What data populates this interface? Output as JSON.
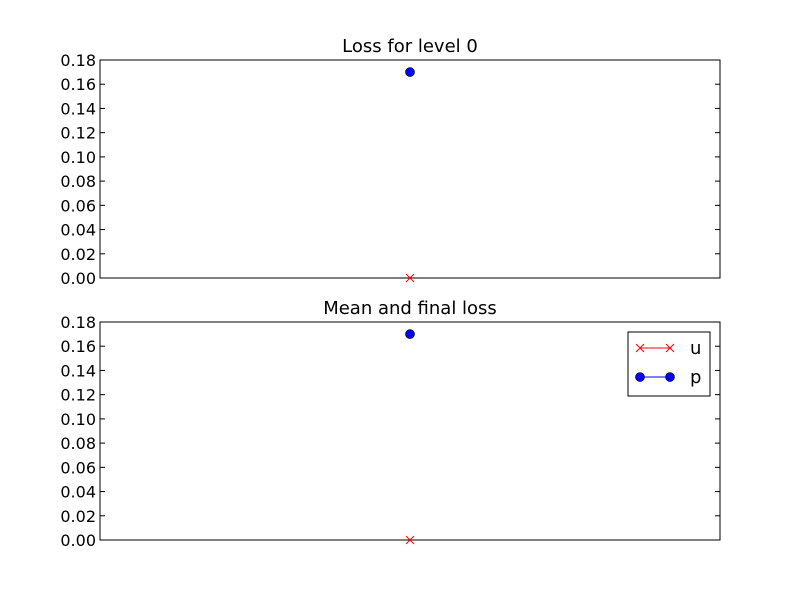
{
  "chart_data": [
    {
      "type": "line",
      "title": "Loss for level 0",
      "xlabel": "",
      "ylabel": "",
      "ylim": [
        0,
        0.18
      ],
      "yticks": [
        "0.00",
        "0.02",
        "0.04",
        "0.06",
        "0.08",
        "0.10",
        "0.12",
        "0.14",
        "0.16",
        "0.18"
      ],
      "x": [
        0
      ],
      "xlim": [
        -1,
        1
      ],
      "grid": false,
      "series": [
        {
          "key": "u",
          "marker": "x",
          "color": "#ff0000",
          "values": [
            0.0
          ]
        },
        {
          "key": "p",
          "marker": "o",
          "color": "#0000ff",
          "values": [
            0.17
          ]
        }
      ]
    },
    {
      "type": "line",
      "title": "Mean and final loss",
      "xlabel": "",
      "ylabel": "",
      "ylim": [
        0,
        0.18
      ],
      "yticks": [
        "0.00",
        "0.02",
        "0.04",
        "0.06",
        "0.08",
        "0.10",
        "0.12",
        "0.14",
        "0.16",
        "0.18"
      ],
      "x": [
        0
      ],
      "xlim": [
        -1,
        1
      ],
      "grid": false,
      "legend": {
        "placement": "top-right",
        "entries": [
          "u",
          "p"
        ]
      },
      "series": [
        {
          "key": "u",
          "name": "u",
          "marker": "x",
          "color": "#ff0000",
          "values": [
            0.0
          ]
        },
        {
          "key": "p",
          "name": "p",
          "marker": "o",
          "color": "#0000ff",
          "values": [
            0.17
          ]
        }
      ]
    }
  ]
}
